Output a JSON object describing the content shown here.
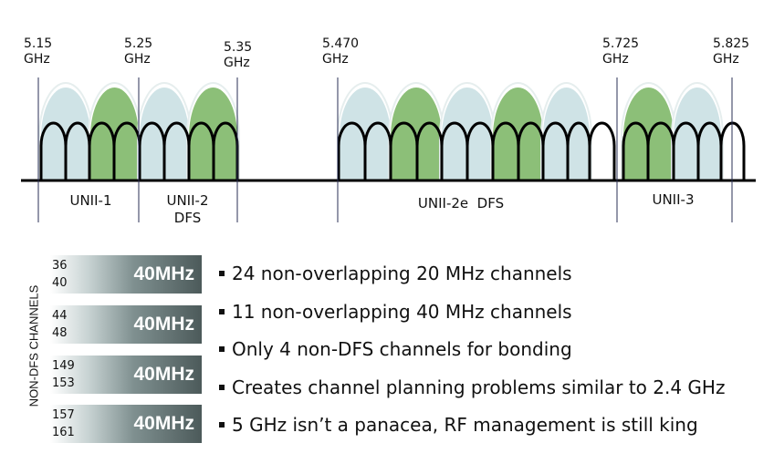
{
  "frequencies": [
    {
      "value": "5.15",
      "unit": "GHz"
    },
    {
      "value": "5.25",
      "unit": "GHz"
    },
    {
      "value": "5.35",
      "unit": "GHz"
    },
    {
      "value": "5.470",
      "unit": "GHz"
    },
    {
      "value": "5.725",
      "unit": "GHz"
    },
    {
      "value": "5.825",
      "unit": "GHz"
    }
  ],
  "bands": [
    {
      "line1": "UNII-1",
      "line2": ""
    },
    {
      "line1": "UNII-2",
      "line2": "DFS"
    },
    {
      "line1": "UNII-2e  DFS",
      "line2": ""
    },
    {
      "line1": "UNII-3",
      "line2": ""
    }
  ],
  "colors": {
    "channel_40_light": "#cfe3e6",
    "channel_40_green": "#8cbf78",
    "channel_outline": "#000000"
  },
  "side_label": "NON-DFS CHANNELS",
  "bonded_pairs": [
    {
      "ch1": "36",
      "ch2": "40",
      "width": "40MHz"
    },
    {
      "ch1": "44",
      "ch2": "48",
      "width": "40MHz"
    },
    {
      "ch1": "149",
      "ch2": "153",
      "width": "40MHz"
    },
    {
      "ch1": "157",
      "ch2": "161",
      "width": "40MHz"
    }
  ],
  "bullets": [
    "24 non-overlapping 20 MHz channels",
    "11 non-overlapping 40 MHz channels",
    "Only 4 non-DFS channels for bonding",
    "Creates channel planning problems similar to 2.4 GHz",
    "5 GHz isn’t a panacea, RF management is still king"
  ]
}
